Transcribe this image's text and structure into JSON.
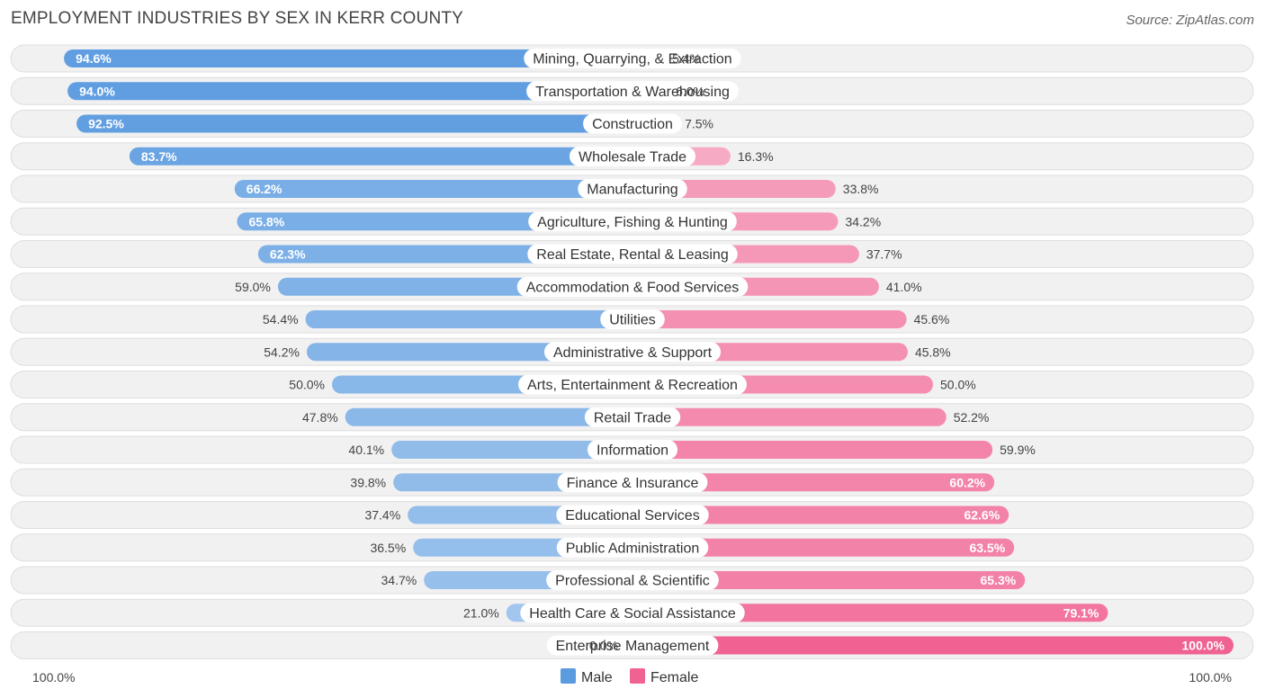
{
  "chart_data": {
    "type": "bar",
    "orientation": "horizontal-diverging",
    "title": "EMPLOYMENT INDUSTRIES BY SEX IN KERR COUNTY",
    "source": "Source: ZipAtlas.com",
    "categories": [
      "Mining, Quarrying, & Extraction",
      "Transportation & Warehousing",
      "Construction",
      "Wholesale Trade",
      "Manufacturing",
      "Agriculture, Fishing & Hunting",
      "Real Estate, Rental & Leasing",
      "Accommodation & Food Services",
      "Utilities",
      "Administrative & Support",
      "Arts, Entertainment & Recreation",
      "Retail Trade",
      "Information",
      "Finance & Insurance",
      "Educational Services",
      "Public Administration",
      "Professional & Scientific",
      "Health Care & Social Assistance",
      "Enterprise Management"
    ],
    "series": [
      {
        "name": "Male",
        "color": "#5b9be0",
        "values": [
          94.6,
          94.0,
          92.5,
          83.7,
          66.2,
          65.8,
          62.3,
          59.0,
          54.4,
          54.2,
          50.0,
          47.8,
          40.1,
          39.8,
          37.4,
          36.5,
          34.7,
          21.0,
          0.0
        ],
        "labels": [
          "94.6%",
          "94.0%",
          "92.5%",
          "83.7%",
          "66.2%",
          "65.8%",
          "62.3%",
          "59.0%",
          "54.4%",
          "54.2%",
          "50.0%",
          "47.8%",
          "40.1%",
          "39.8%",
          "37.4%",
          "36.5%",
          "34.7%",
          "21.0%",
          "0.0%"
        ]
      },
      {
        "name": "Female",
        "color": "#f06292",
        "values": [
          5.4,
          6.0,
          7.5,
          16.3,
          33.8,
          34.2,
          37.7,
          41.0,
          45.6,
          45.8,
          50.0,
          52.2,
          59.9,
          60.2,
          62.6,
          63.5,
          65.3,
          79.1,
          100.0
        ],
        "labels": [
          "5.4%",
          "6.0%",
          "7.5%",
          "16.3%",
          "33.8%",
          "34.2%",
          "37.7%",
          "41.0%",
          "45.6%",
          "45.8%",
          "50.0%",
          "52.2%",
          "59.9%",
          "60.2%",
          "62.6%",
          "63.5%",
          "65.3%",
          "79.1%",
          "100.0%"
        ]
      }
    ],
    "xlim": [
      -100,
      100
    ],
    "axis_labels": {
      "left": "100.0%",
      "right": "100.0%"
    },
    "legend": {
      "position": "bottom-center",
      "items": [
        "Male",
        "Female"
      ]
    }
  }
}
